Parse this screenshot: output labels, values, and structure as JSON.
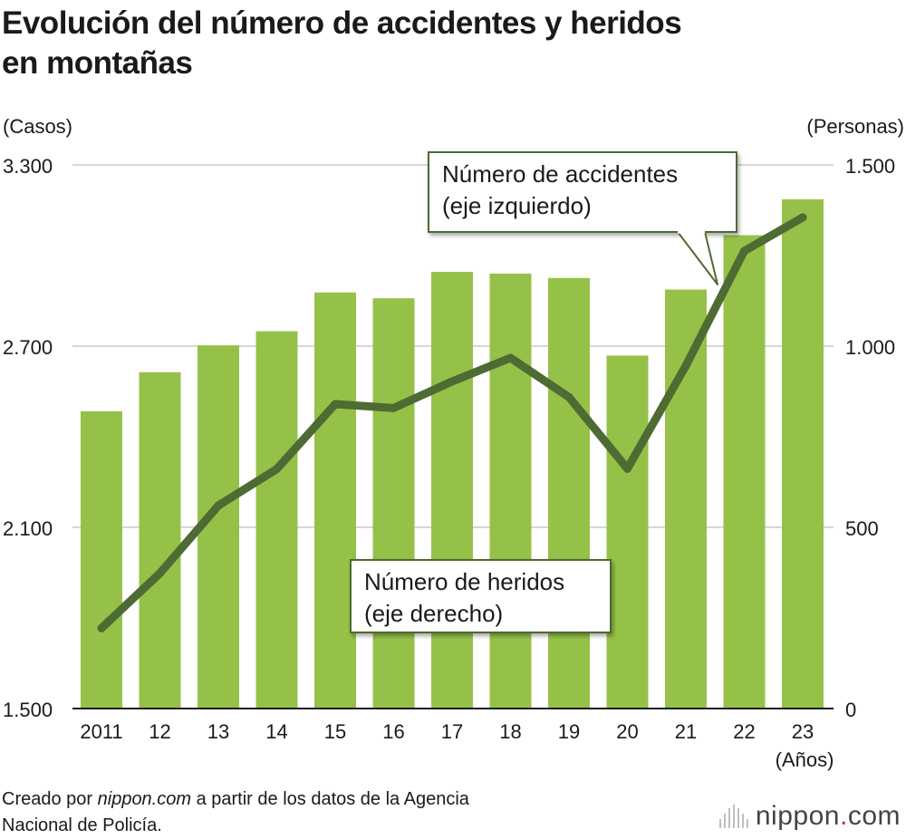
{
  "header": {
    "title_line1": "Evolución del número de accidentes y heridos",
    "title_line2": "en montañas"
  },
  "chart_data": {
    "type": "bar+line",
    "title": "Evolución del número de accidentes y heridos en montañas",
    "categories": [
      "2011",
      "12",
      "13",
      "14",
      "15",
      "16",
      "17",
      "18",
      "19",
      "20",
      "21",
      "22",
      "23"
    ],
    "x_unit_label": "(Años)",
    "left_axis": {
      "label": "(Casos)",
      "range": [
        1500,
        3300
      ],
      "ticks": [
        1500,
        2100,
        2700,
        3300
      ],
      "tick_labels": [
        "1.500",
        "2.100",
        "2.700",
        "3.300"
      ]
    },
    "right_axis": {
      "label": "(Personas)",
      "range": [
        0,
        1500
      ],
      "ticks": [
        0,
        500,
        1000,
        1500
      ],
      "tick_labels": [
        "0",
        "500",
        "1.000",
        "1.500"
      ]
    },
    "series": [
      {
        "name": "Número de accidentes (eje izquierdo)",
        "type": "line",
        "axis": "left",
        "color": "#4e6b33",
        "values": [
          1766,
          1948,
          2172,
          2293,
          2508,
          2495,
          2583,
          2661,
          2531,
          2294,
          2635,
          3015,
          3126
        ]
      },
      {
        "name": "Número de heridos (eje derecho)",
        "type": "bar",
        "axis": "right",
        "color": "#96c148",
        "values": [
          820,
          928,
          1002,
          1041,
          1148,
          1132,
          1205,
          1200,
          1188,
          974,
          1156,
          1306,
          1405
        ]
      }
    ],
    "annotations": [
      {
        "series": 0,
        "line1": "Número de accidentes",
        "line2": "(eje izquierdo)"
      },
      {
        "series": 1,
        "line1": "Número de heridos",
        "line2": "(eje derecho)"
      }
    ],
    "grid": true
  },
  "footer": {
    "source_prefix": "Creado por ",
    "source_site": "nippon.com",
    "source_line1_rest": " a partir de los datos de la Agencia",
    "source_line2": "Nacional de Policía."
  },
  "logo": {
    "name": "nippon",
    "dot": ".",
    "tld": "com",
    "dot_color": "#d7282f"
  }
}
